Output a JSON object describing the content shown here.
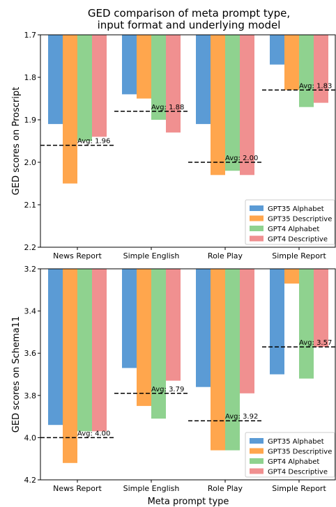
{
  "title_lines": [
    "GED comparison of meta prompt type,",
    "input format and underlying model"
  ],
  "colors": {
    "GPT35 Alphabet": "#5b9bd5",
    "GPT35 Descriptive": "#ffa64d",
    "GPT4 Alphabet": "#8fd28f",
    "GPT4 Descriptive": "#f09090"
  },
  "chart_data": [
    {
      "type": "bar",
      "categories": [
        "News Report",
        "Simple English",
        "Role Play",
        "Simple Report"
      ],
      "ylabel": "GED scores on Proscript",
      "xlabel": "",
      "ylim": [
        2.2,
        1.7
      ],
      "yticks": [
        "1.7",
        "1.8",
        "1.9",
        "2.0",
        "2.1",
        "2.2"
      ],
      "inverted_y": true,
      "legend": "bottom-right",
      "series": [
        {
          "name": "GPT35 Alphabet",
          "values": [
            1.91,
            1.84,
            1.91,
            1.77
          ]
        },
        {
          "name": "GPT35 Descriptive",
          "values": [
            2.05,
            1.85,
            2.03,
            1.83
          ]
        },
        {
          "name": "GPT4 Alphabet",
          "values": [
            1.95,
            1.9,
            2.02,
            1.87
          ]
        },
        {
          "name": "GPT4 Descriptive",
          "values": [
            1.94,
            1.93,
            2.03,
            1.86
          ]
        }
      ],
      "averages": [
        {
          "value": 1.96,
          "label": "Avg: 1.96"
        },
        {
          "value": 1.88,
          "label": "Avg: 1.88"
        },
        {
          "value": 2.0,
          "label": "Avg: 2.00"
        },
        {
          "value": 1.83,
          "label": "Avg: 1.83"
        }
      ]
    },
    {
      "type": "bar",
      "categories": [
        "News Report",
        "Simple English",
        "Role Play",
        "Simple Report"
      ],
      "ylabel": "GED scores on Schema11",
      "xlabel": "Meta prompt type",
      "ylim": [
        4.2,
        3.2
      ],
      "yticks": [
        "3.2",
        "3.4",
        "3.6",
        "3.8",
        "4.0",
        "4.2"
      ],
      "inverted_y": true,
      "legend": "bottom-right",
      "series": [
        {
          "name": "GPT35 Alphabet",
          "values": [
            3.94,
            3.67,
            3.76,
            3.7
          ]
        },
        {
          "name": "GPT35 Descriptive",
          "values": [
            4.12,
            3.85,
            4.06,
            3.27
          ]
        },
        {
          "name": "GPT4 Alphabet",
          "values": [
            3.97,
            3.91,
            4.06,
            3.72
          ]
        },
        {
          "name": "GPT4 Descriptive",
          "values": [
            3.97,
            3.73,
            3.79,
            3.57
          ]
        }
      ],
      "averages": [
        {
          "value": 4.0,
          "label": "Avg: 4.00"
        },
        {
          "value": 3.79,
          "label": "Avg: 3.79"
        },
        {
          "value": 3.92,
          "label": "Avg: 3.92"
        },
        {
          "value": 3.57,
          "label": "Avg: 3.57"
        }
      ]
    }
  ]
}
